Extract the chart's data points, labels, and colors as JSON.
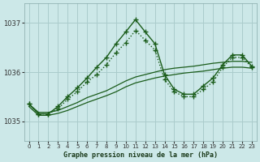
{
  "background_color": "#cce8e8",
  "grid_color": "#aacccc",
  "line_color": "#1a5c1a",
  "title": "Graphe pression niveau de la mer (hPa)",
  "ylabel_ticks": [
    1035,
    1036,
    1037
  ],
  "xlim": [
    -0.5,
    23.5
  ],
  "ylim": [
    1034.6,
    1037.4
  ],
  "xticks": [
    0,
    1,
    2,
    3,
    4,
    5,
    6,
    7,
    8,
    9,
    10,
    11,
    12,
    13,
    14,
    15,
    16,
    17,
    18,
    19,
    20,
    21,
    22,
    23
  ],
  "series": [
    {
      "x": [
        0,
        1,
        2,
        3,
        4,
        5,
        6,
        7,
        8,
        9,
        10,
        11,
        12,
        13,
        14,
        15,
        16,
        17,
        18,
        19,
        20,
        21,
        22,
        23
      ],
      "y": [
        1035.35,
        1035.15,
        1035.15,
        1035.25,
        1035.45,
        1035.6,
        1035.8,
        1035.95,
        1036.15,
        1036.4,
        1036.6,
        1036.85,
        1036.65,
        1036.45,
        1035.85,
        1035.6,
        1035.5,
        1035.5,
        1035.65,
        1035.8,
        1036.1,
        1036.3,
        1036.3,
        1036.1
      ],
      "linestyle": ":",
      "linewidth": 1.0,
      "marker": "+",
      "markersize": 4
    },
    {
      "x": [
        0,
        1,
        2,
        3,
        4,
        5,
        6,
        7,
        8,
        9,
        10,
        11,
        12,
        13,
        14,
        15,
        16,
        17,
        18,
        19,
        20,
        21,
        22,
        23
      ],
      "y": [
        1035.35,
        1035.15,
        1035.15,
        1035.3,
        1035.5,
        1035.68,
        1035.88,
        1036.1,
        1036.3,
        1036.58,
        1036.82,
        1037.07,
        1036.82,
        1036.58,
        1035.95,
        1035.65,
        1035.55,
        1035.55,
        1035.72,
        1035.88,
        1036.15,
        1036.35,
        1036.35,
        1036.12
      ],
      "linestyle": "-",
      "linewidth": 1.0,
      "marker": "+",
      "markersize": 4
    },
    {
      "x": [
        0,
        1,
        2,
        3,
        4,
        5,
        6,
        7,
        8,
        9,
        10,
        11,
        12,
        13,
        14,
        15,
        16,
        17,
        18,
        19,
        20,
        21,
        22,
        23
      ],
      "y": [
        1035.35,
        1035.18,
        1035.18,
        1035.22,
        1035.3,
        1035.38,
        1035.48,
        1035.55,
        1035.62,
        1035.72,
        1035.82,
        1035.9,
        1035.95,
        1036.0,
        1036.05,
        1036.08,
        1036.1,
        1036.12,
        1036.15,
        1036.18,
        1036.2,
        1036.22,
        1036.22,
        1036.2
      ],
      "linestyle": "-",
      "linewidth": 0.9,
      "marker": null,
      "markersize": 0
    },
    {
      "x": [
        0,
        1,
        2,
        3,
        4,
        5,
        6,
        7,
        8,
        9,
        10,
        11,
        12,
        13,
        14,
        15,
        16,
        17,
        18,
        19,
        20,
        21,
        22,
        23
      ],
      "y": [
        1035.3,
        1035.12,
        1035.12,
        1035.16,
        1035.22,
        1035.3,
        1035.38,
        1035.45,
        1035.52,
        1035.6,
        1035.7,
        1035.78,
        1035.83,
        1035.88,
        1035.92,
        1035.95,
        1035.98,
        1036.0,
        1036.02,
        1036.05,
        1036.08,
        1036.1,
        1036.1,
        1036.08
      ],
      "linestyle": "-",
      "linewidth": 0.9,
      "marker": null,
      "markersize": 0
    }
  ]
}
